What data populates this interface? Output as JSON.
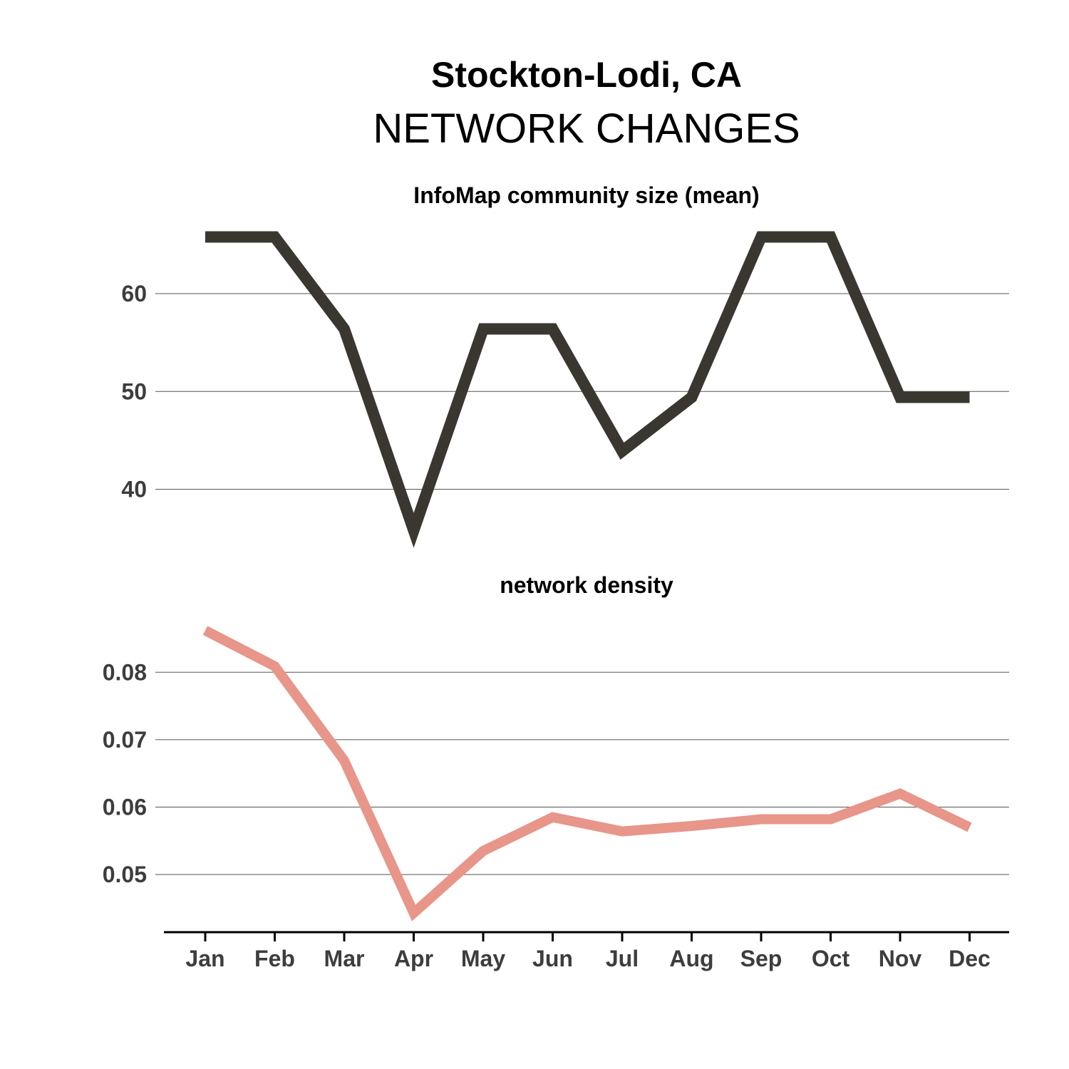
{
  "title": "Stockton-Lodi, CA",
  "subtitle": "NETWORK CHANGES",
  "months": [
    "Jan",
    "Feb",
    "Mar",
    "Apr",
    "May",
    "Jun",
    "Jul",
    "Aug",
    "Sep",
    "Oct",
    "Nov",
    "Dec"
  ],
  "chart_data": [
    {
      "type": "line",
      "title": "InfoMap community size (mean)",
      "x": [
        "Jan",
        "Feb",
        "Mar",
        "Apr",
        "May",
        "Jun",
        "Jul",
        "Aug",
        "Sep",
        "Oct",
        "Nov",
        "Dec"
      ],
      "values": [
        65.8,
        65.8,
        56.4,
        35.8,
        56.4,
        56.4,
        43.9,
        49.4,
        65.8,
        65.8,
        49.4,
        49.4
      ],
      "ylim": [
        34.5,
        67
      ],
      "yticks": [
        40,
        50,
        60
      ],
      "grid": true,
      "color": "#3a3731"
    },
    {
      "type": "line",
      "title": "network density",
      "x": [
        "Jan",
        "Feb",
        "Mar",
        "Apr",
        "May",
        "Jun",
        "Jul",
        "Aug",
        "Sep",
        "Oct",
        "Nov",
        "Dec"
      ],
      "values": [
        0.0862,
        0.0809,
        0.0669,
        0.0443,
        0.0535,
        0.0585,
        0.0564,
        0.0572,
        0.0582,
        0.0582,
        0.062,
        0.057
      ],
      "ylim": [
        0.0423,
        0.0888
      ],
      "yticks": [
        0.05,
        0.06,
        0.07,
        0.08
      ],
      "grid": true,
      "color": "#e8958a"
    }
  ]
}
